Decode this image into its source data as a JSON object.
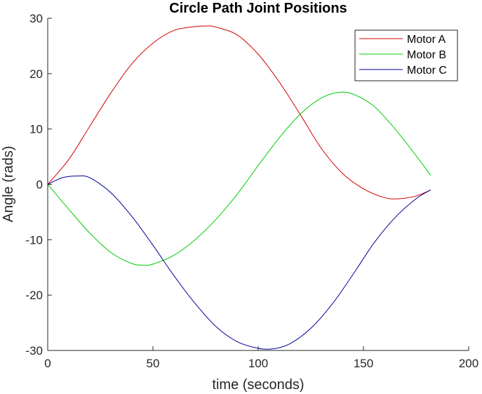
{
  "chart_data": {
    "type": "line",
    "title": "Circle Path Joint Positions",
    "xlabel": "time (seconds)",
    "ylabel": "Angle (rads)",
    "xlim": [
      0,
      200
    ],
    "ylim": [
      -30,
      30
    ],
    "xticks": [
      0,
      50,
      100,
      150,
      200
    ],
    "yticks": [
      -30,
      -20,
      -10,
      0,
      10,
      20,
      30
    ],
    "grid": false,
    "legend": "top-right",
    "series": [
      {
        "name": "Motor A",
        "color": "#d40000",
        "x": [
          0,
          10,
          20,
          30,
          40,
          50,
          60,
          70,
          76,
          80,
          90,
          100,
          110,
          120,
          130,
          140,
          150,
          160,
          167,
          175,
          182
        ],
        "y": [
          0,
          4.5,
          10.5,
          16.5,
          21.8,
          25.5,
          27.8,
          28.5,
          28.6,
          28.4,
          27,
          23.5,
          18.5,
          12.6,
          6.5,
          2,
          -0.8,
          -2.4,
          -2.6,
          -2.1,
          -1
        ]
      },
      {
        "name": "Motor B",
        "color": "#00cc00",
        "x": [
          0,
          10,
          20,
          30,
          40,
          46,
          50,
          60,
          70,
          80,
          90,
          100,
          110,
          120,
          130,
          138,
          145,
          155,
          165,
          175,
          182
        ],
        "y": [
          0,
          -4.5,
          -8.8,
          -12.3,
          -14.3,
          -14.6,
          -14.4,
          -12.8,
          -10,
          -6.3,
          -1.8,
          3.4,
          8.4,
          12.7,
          15.6,
          16.6,
          16.3,
          14.1,
          10,
          5.2,
          1.6
        ]
      },
      {
        "name": "Motor C",
        "color": "#000099",
        "x": [
          0,
          7,
          14,
          20,
          30,
          40,
          50,
          60,
          70,
          80,
          90,
          100,
          107,
          115,
          125,
          135,
          145,
          155,
          165,
          175,
          182
        ],
        "y": [
          0,
          1.2,
          1.5,
          1.2,
          -1.5,
          -5.8,
          -11,
          -16.5,
          -21.5,
          -25.7,
          -28.4,
          -29.6,
          -29.7,
          -28.8,
          -26,
          -21.7,
          -16.3,
          -10.6,
          -6,
          -2.6,
          -1
        ]
      }
    ]
  }
}
